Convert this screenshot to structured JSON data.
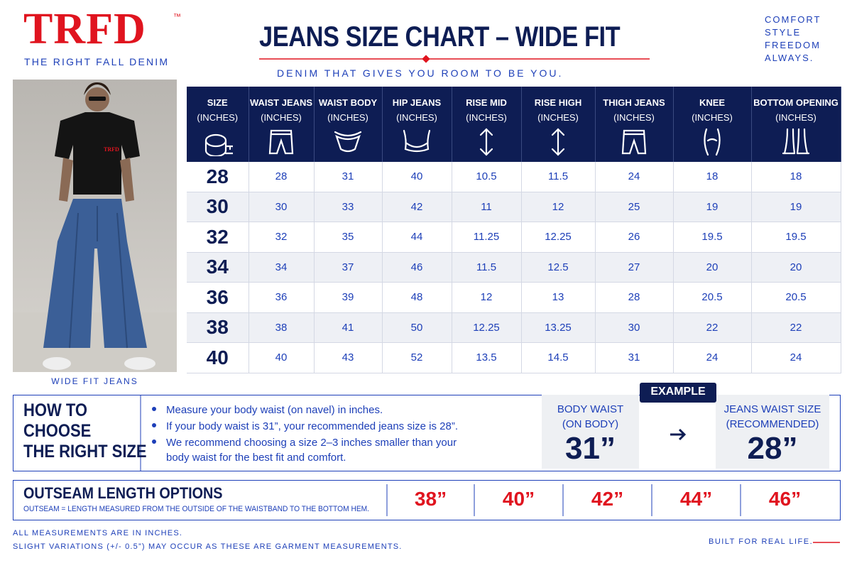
{
  "brand": {
    "logo": "TRFD",
    "trademark": "™",
    "tagline": "THE RIGHT FALL DENIM"
  },
  "header": {
    "title": "JEANS SIZE CHART – WIDE FIT",
    "subtitle": "DENIM THAT GIVES YOU ROOM TO BE YOU."
  },
  "motto": [
    "COMFORT",
    "STYLE",
    "FREEDOM",
    "ALWAYS."
  ],
  "photo": {
    "shirt_print": "TRFD",
    "caption": "WIDE FIT JEANS"
  },
  "table": {
    "columns": [
      {
        "name": "SIZE",
        "unit": "(INCHES)"
      },
      {
        "name": "WAIST JEANS",
        "unit": "(INCHES)"
      },
      {
        "name": "WAIST BODY",
        "unit": "(INCHES)"
      },
      {
        "name": "HIP JEANS",
        "unit": "(INCHES)"
      },
      {
        "name": "RISE MID",
        "unit": "(INCHES)"
      },
      {
        "name": "RISE HIGH",
        "unit": "(INCHES)"
      },
      {
        "name": "THIGH JEANS",
        "unit": "(INCHES)"
      },
      {
        "name": "KNEE",
        "unit": "(INCHES)"
      },
      {
        "name": "BOTTOM OPENING",
        "unit": "(INCHES)"
      }
    ],
    "rows": [
      [
        28,
        28,
        31,
        40,
        10.5,
        11.5,
        24,
        18,
        18
      ],
      [
        30,
        30,
        33,
        42,
        11,
        12,
        25,
        19,
        19
      ],
      [
        32,
        32,
        35,
        44,
        11.25,
        12.25,
        26,
        19.5,
        19.5
      ],
      [
        34,
        34,
        37,
        46,
        11.5,
        12.5,
        27,
        20,
        20
      ],
      [
        36,
        36,
        39,
        48,
        12,
        13,
        28,
        20.5,
        20.5
      ],
      [
        38,
        38,
        41,
        50,
        12.25,
        13.25,
        30,
        22,
        22
      ],
      [
        40,
        40,
        43,
        52,
        13.5,
        14.5,
        31,
        24,
        24
      ]
    ]
  },
  "how_to": {
    "title": [
      "HOW TO",
      "CHOOSE",
      "THE RIGHT SIZE"
    ],
    "bullets": [
      "Measure your body waist (on navel) in inches.",
      "If your body waist is 31”, your recommended jeans size is 28”.",
      "We recommend choosing a size 2–3 inches smaller than your body waist for the best fit and comfort."
    ],
    "example": {
      "label": "EXAMPLE",
      "from": {
        "label": "BODY WAIST",
        "sub": "(ON BODY)",
        "value": "31”"
      },
      "to": {
        "label": "JEANS WAIST SIZE",
        "sub": "(RECOMMENDED)",
        "value": "28”"
      }
    }
  },
  "outseam": {
    "title": "OUTSEAM LENGTH OPTIONS",
    "note": "OUTSEAM = LENGTH MEASURED FROM THE OUTSIDE OF THE WAISTBAND TO THE BOTTOM HEM.",
    "options": [
      "38”",
      "40”",
      "42”",
      "44”",
      "46”"
    ]
  },
  "footer": {
    "notes": [
      "ALL MEASUREMENTS ARE IN INCHES.",
      "SLIGHT VARIATIONS (+/- 0.5”) MAY OCCUR AS THESE ARE GARMENT MEASUREMENTS."
    ],
    "slogan": "BUILT FOR REAL LIFE."
  }
}
